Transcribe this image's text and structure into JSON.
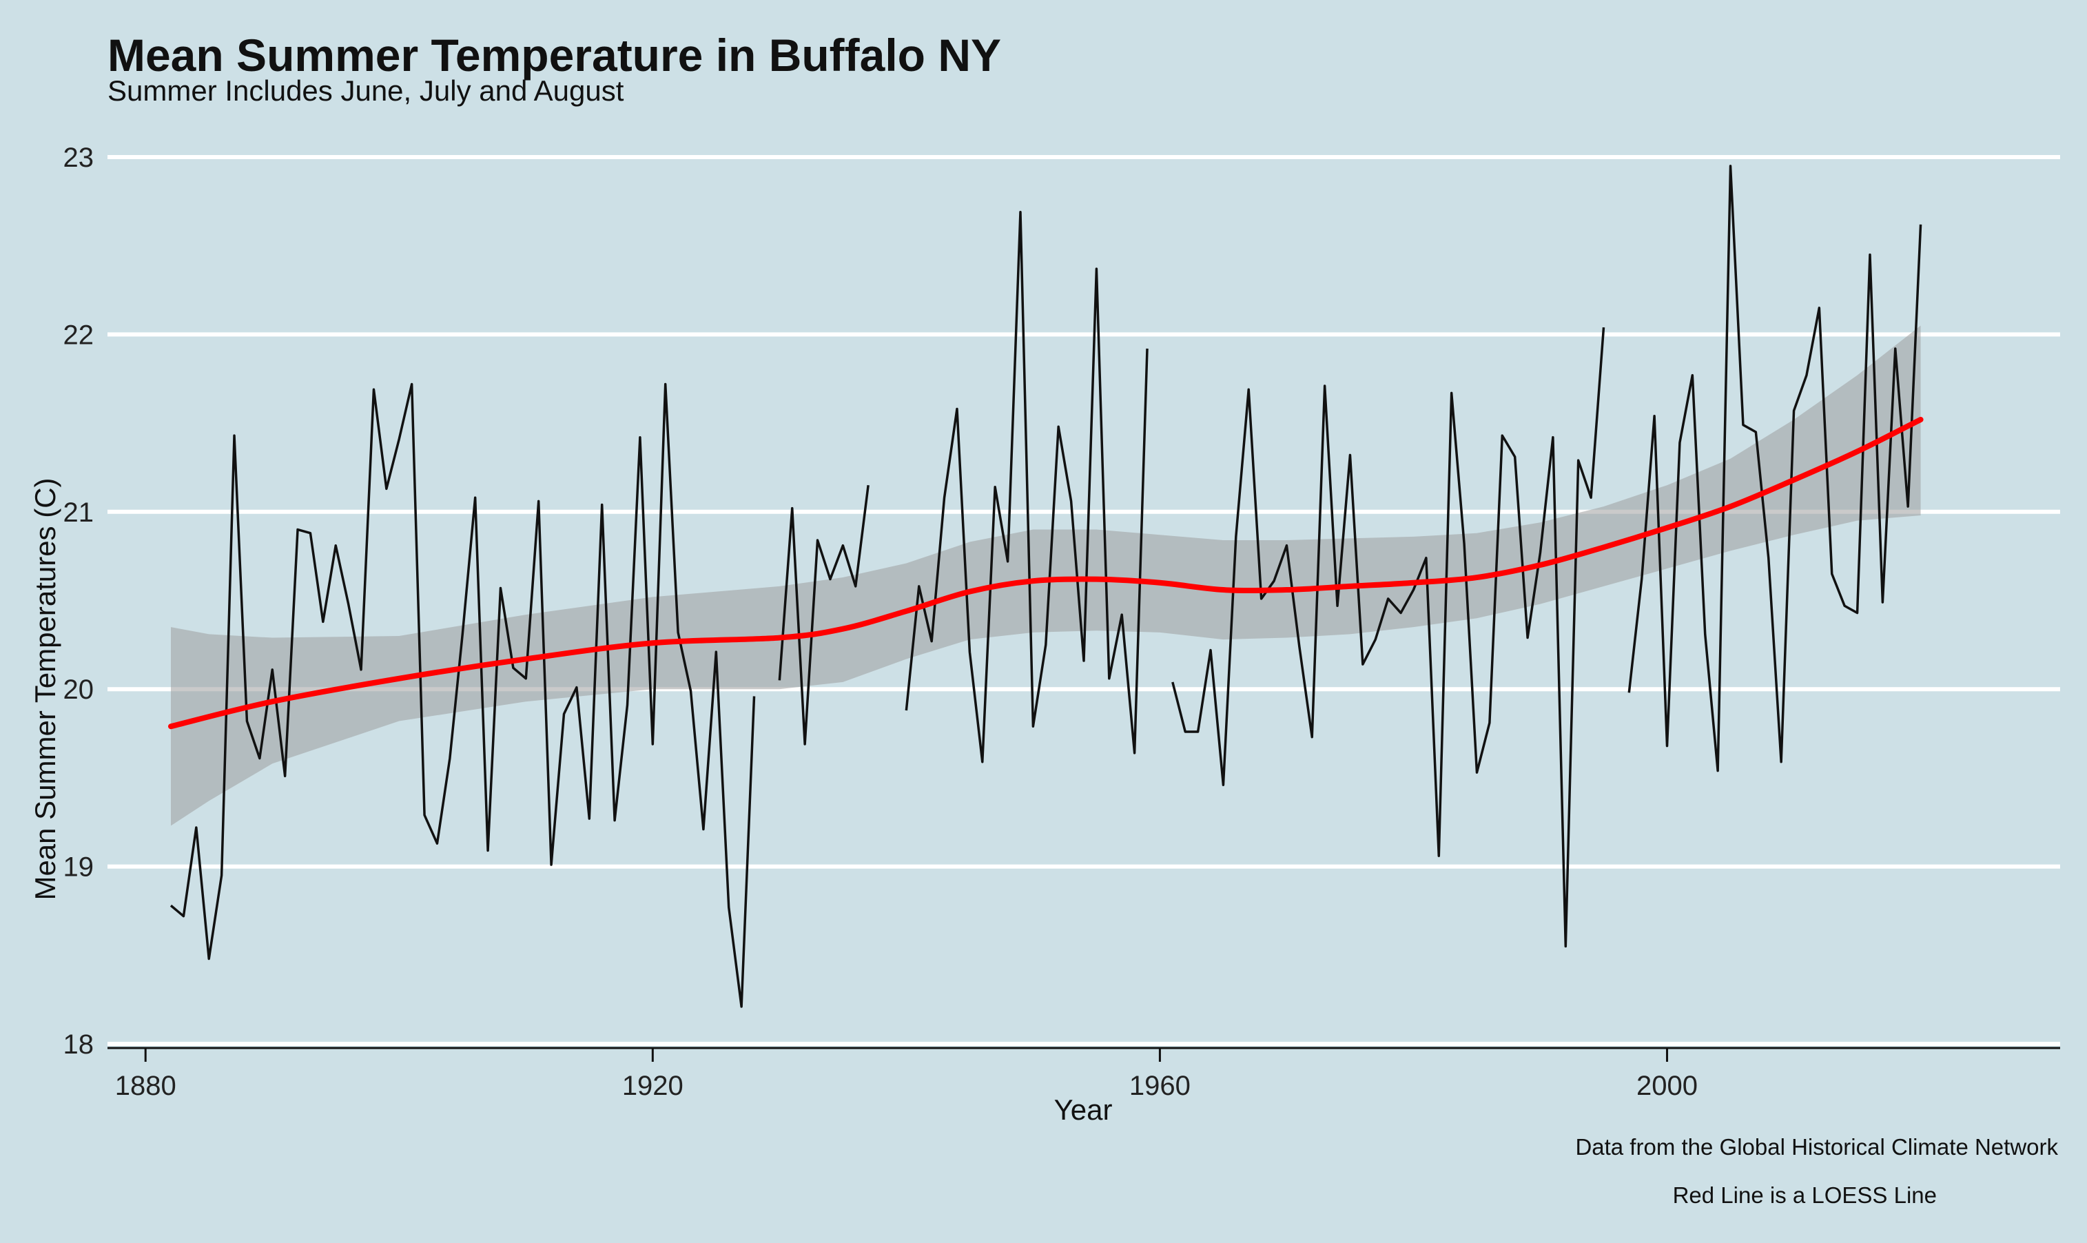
{
  "title": "Mean Summer Temperature in Buffalo NY",
  "subtitle": "Summer Includes June, July and August",
  "captions": [
    "Data from the Global Historical Climate Network",
    "Red Line is a LOESS Line"
  ],
  "colors": {
    "background": "#cde0e6",
    "series": "#111111",
    "loess": "#ff0000",
    "ribbon": "#9e9e9e",
    "grid": "#ffffff"
  },
  "chart_data": {
    "type": "line",
    "xlabel": "Year",
    "ylabel": "Mean Summer Temperatures (C)",
    "xlim": [
      1877,
      2031
    ],
    "ylim": [
      18,
      23
    ],
    "x_ticks": [
      1880,
      1920,
      1960,
      2000
    ],
    "y_ticks": [
      18,
      19,
      20,
      21,
      22,
      23
    ],
    "grid": "horizontal",
    "series": [
      {
        "values": [
          [
            1882,
            18.78
          ],
          [
            1883,
            18.72
          ],
          [
            1884,
            19.22
          ],
          [
            1885,
            18.48
          ],
          [
            1886,
            18.95
          ],
          [
            1887,
            21.43
          ],
          [
            1888,
            19.82
          ],
          [
            1889,
            19.61
          ],
          [
            1890,
            20.11
          ],
          [
            1891,
            19.51
          ],
          [
            1892,
            20.9
          ],
          [
            1893,
            20.88
          ],
          [
            1894,
            20.38
          ],
          [
            1895,
            20.81
          ],
          [
            1896,
            20.48
          ],
          [
            1897,
            20.11
          ],
          [
            1898,
            21.69
          ],
          [
            1899,
            21.13
          ],
          [
            1900,
            21.41
          ],
          [
            1901,
            21.72
          ],
          [
            1902,
            19.29
          ],
          [
            1903,
            19.13
          ],
          [
            1904,
            19.61
          ],
          [
            1905,
            20.31
          ],
          [
            1906,
            21.08
          ],
          [
            1907,
            19.09
          ],
          [
            1908,
            20.57
          ],
          [
            1909,
            20.12
          ],
          [
            1910,
            20.06
          ],
          [
            1911,
            21.06
          ],
          [
            1912,
            19.01
          ],
          [
            1913,
            19.86
          ],
          [
            1914,
            20.01
          ],
          [
            1915,
            19.27
          ],
          [
            1916,
            21.04
          ],
          [
            1917,
            19.26
          ],
          [
            1918,
            19.91
          ],
          [
            1919,
            21.42
          ],
          [
            1920,
            19.69
          ],
          [
            1921,
            21.72
          ],
          [
            1922,
            20.32
          ],
          [
            1923,
            19.99
          ],
          [
            1924,
            19.21
          ],
          [
            1925,
            20.21
          ],
          [
            1926,
            18.77
          ],
          [
            1927,
            18.21
          ],
          [
            1928,
            19.96
          ],
          [
            1929,
            null
          ],
          [
            1930,
            20.05
          ],
          [
            1931,
            21.02
          ],
          [
            1932,
            19.69
          ],
          [
            1933,
            20.84
          ],
          [
            1934,
            20.62
          ],
          [
            1935,
            20.81
          ],
          [
            1936,
            20.58
          ],
          [
            1937,
            21.15
          ],
          [
            1938,
            null
          ],
          [
            1939,
            null
          ],
          [
            1940,
            19.88
          ],
          [
            1941,
            20.58
          ],
          [
            1942,
            20.27
          ],
          [
            1943,
            21.08
          ],
          [
            1944,
            21.58
          ],
          [
            1945,
            20.21
          ],
          [
            1946,
            19.59
          ],
          [
            1947,
            21.14
          ],
          [
            1948,
            20.72
          ],
          [
            1949,
            22.69
          ],
          [
            1950,
            19.79
          ],
          [
            1951,
            20.25
          ],
          [
            1952,
            21.48
          ],
          [
            1953,
            21.06
          ],
          [
            1954,
            20.16
          ],
          [
            1955,
            22.37
          ],
          [
            1956,
            20.06
          ],
          [
            1957,
            20.42
          ],
          [
            1958,
            19.64
          ],
          [
            1959,
            21.92
          ],
          [
            1960,
            null
          ],
          [
            1961,
            20.04
          ],
          [
            1962,
            19.76
          ],
          [
            1963,
            19.76
          ],
          [
            1964,
            20.22
          ],
          [
            1965,
            19.46
          ],
          [
            1966,
            20.86
          ],
          [
            1967,
            21.69
          ],
          [
            1968,
            20.51
          ],
          [
            1969,
            20.61
          ],
          [
            1970,
            20.81
          ],
          [
            1971,
            20.24
          ],
          [
            1972,
            19.73
          ],
          [
            1973,
            21.71
          ],
          [
            1974,
            20.47
          ],
          [
            1975,
            21.32
          ],
          [
            1976,
            20.14
          ],
          [
            1977,
            20.28
          ],
          [
            1978,
            20.51
          ],
          [
            1979,
            20.43
          ],
          [
            1980,
            20.56
          ],
          [
            1981,
            20.74
          ],
          [
            1982,
            19.06
          ],
          [
            1983,
            21.67
          ],
          [
            1984,
            20.82
          ],
          [
            1985,
            19.53
          ],
          [
            1986,
            19.81
          ],
          [
            1987,
            21.43
          ],
          [
            1988,
            21.31
          ],
          [
            1989,
            20.29
          ],
          [
            1990,
            20.77
          ],
          [
            1991,
            21.42
          ],
          [
            1992,
            18.55
          ],
          [
            1993,
            21.29
          ],
          [
            1994,
            21.08
          ],
          [
            1995,
            22.04
          ],
          [
            1996,
            null
          ],
          [
            1997,
            19.98
          ],
          [
            1998,
            20.62
          ],
          [
            1999,
            21.54
          ],
          [
            2000,
            19.68
          ],
          [
            2001,
            21.39
          ],
          [
            2002,
            21.77
          ],
          [
            2003,
            20.31
          ],
          [
            2004,
            19.54
          ],
          [
            2005,
            22.95
          ],
          [
            2006,
            21.49
          ],
          [
            2007,
            21.45
          ],
          [
            2008,
            20.74
          ],
          [
            2009,
            19.59
          ],
          [
            2010,
            21.57
          ],
          [
            2011,
            21.77
          ],
          [
            2012,
            22.15
          ],
          [
            2013,
            20.65
          ],
          [
            2014,
            20.47
          ],
          [
            2015,
            20.43
          ],
          [
            2016,
            22.45
          ],
          [
            2017,
            20.49
          ],
          [
            2018,
            21.92
          ],
          [
            2019,
            21.03
          ],
          [
            2020,
            22.62
          ]
        ]
      },
      {
        "type": "loess",
        "values": [
          [
            1882,
            19.79
          ],
          [
            1890,
            19.93
          ],
          [
            1900,
            20.06
          ],
          [
            1910,
            20.17
          ],
          [
            1920,
            20.26
          ],
          [
            1930,
            20.29
          ],
          [
            1935,
            20.34
          ],
          [
            1940,
            20.44
          ],
          [
            1945,
            20.55
          ],
          [
            1950,
            20.61
          ],
          [
            1955,
            20.62
          ],
          [
            1960,
            20.6
          ],
          [
            1965,
            20.56
          ],
          [
            1970,
            20.56
          ],
          [
            1975,
            20.58
          ],
          [
            1980,
            20.6
          ],
          [
            1985,
            20.63
          ],
          [
            1990,
            20.7
          ],
          [
            1995,
            20.8
          ],
          [
            2000,
            20.91
          ],
          [
            2005,
            21.03
          ],
          [
            2010,
            21.18
          ],
          [
            2015,
            21.34
          ],
          [
            2020,
            21.52
          ]
        ],
        "band": [
          [
            1882,
            19.23,
            20.35
          ],
          [
            1885,
            19.37,
            20.31
          ],
          [
            1890,
            19.58,
            20.29
          ],
          [
            1900,
            19.82,
            20.3
          ],
          [
            1910,
            19.93,
            20.42
          ],
          [
            1920,
            20.0,
            20.52
          ],
          [
            1930,
            20.0,
            20.58
          ],
          [
            1935,
            20.04,
            20.63
          ],
          [
            1940,
            20.17,
            20.71
          ],
          [
            1945,
            20.28,
            20.83
          ],
          [
            1950,
            20.32,
            20.9
          ],
          [
            1955,
            20.33,
            20.9
          ],
          [
            1960,
            20.32,
            20.87
          ],
          [
            1965,
            20.28,
            20.84
          ],
          [
            1970,
            20.29,
            20.84
          ],
          [
            1975,
            20.31,
            20.85
          ],
          [
            1980,
            20.35,
            20.86
          ],
          [
            1985,
            20.4,
            20.88
          ],
          [
            1990,
            20.48,
            20.94
          ],
          [
            1995,
            20.58,
            21.03
          ],
          [
            2000,
            20.68,
            21.15
          ],
          [
            2005,
            20.78,
            21.3
          ],
          [
            2010,
            20.87,
            21.52
          ],
          [
            2015,
            20.95,
            21.77
          ],
          [
            2020,
            20.98,
            22.05
          ]
        ]
      }
    ]
  }
}
